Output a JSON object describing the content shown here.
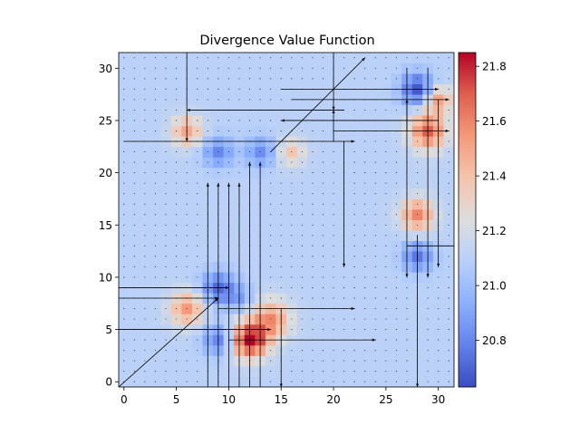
{
  "chart_data": {
    "type": "heatmap",
    "title": "Divergence Value Function",
    "grid_size": 32,
    "x_range": [
      -0.5,
      31.5
    ],
    "y_range": [
      -0.5,
      31.5
    ],
    "x_ticks": [
      0,
      5,
      10,
      15,
      20,
      25,
      30
    ],
    "y_ticks": [
      0,
      5,
      10,
      15,
      20,
      25,
      30
    ],
    "x_tick_labels": [
      "0",
      "5",
      "10",
      "15",
      "20",
      "25",
      "30"
    ],
    "y_tick_labels": [
      "0",
      "5",
      "10",
      "15",
      "20",
      "25",
      "30"
    ],
    "colormap": "coolwarm",
    "vmin": 20.63,
    "vmax": 21.85,
    "base_value": 21.1,
    "colorbar_ticks": [
      20.8,
      21.0,
      21.2,
      21.4,
      21.6,
      21.8
    ],
    "colorbar_tick_labels": [
      "20.8",
      "21.0",
      "21.2",
      "21.4",
      "21.6",
      "21.8"
    ],
    "blobs": [
      {
        "x": 12,
        "y": 4,
        "amp": 0.75,
        "sigma": 1.2
      },
      {
        "x": 14,
        "y": 6,
        "amp": 0.45,
        "sigma": 1.3
      },
      {
        "x": 9,
        "y": 4,
        "amp": -0.33,
        "sigma": 1.0
      },
      {
        "x": 6,
        "y": 7,
        "amp": 0.45,
        "sigma": 1.1
      },
      {
        "x": 9,
        "y": 9,
        "amp": -0.38,
        "sigma": 1.1
      },
      {
        "x": 11,
        "y": 8,
        "amp": -0.2,
        "sigma": 0.9
      },
      {
        "x": 6,
        "y": 24,
        "amp": 0.4,
        "sigma": 1.0
      },
      {
        "x": 9,
        "y": 22,
        "amp": -0.3,
        "sigma": 1.0
      },
      {
        "x": 13,
        "y": 22,
        "amp": -0.28,
        "sigma": 1.0
      },
      {
        "x": 16,
        "y": 22,
        "amp": 0.28,
        "sigma": 0.9
      },
      {
        "x": 28,
        "y": 28,
        "amp": -0.45,
        "sigma": 1.1
      },
      {
        "x": 30,
        "y": 27,
        "amp": 0.45,
        "sigma": 0.9
      },
      {
        "x": 29,
        "y": 24,
        "amp": 0.6,
        "sigma": 1.2
      },
      {
        "x": 28,
        "y": 16,
        "amp": 0.5,
        "sigma": 1.1
      },
      {
        "x": 28,
        "y": 12,
        "amp": -0.35,
        "sigma": 1.0
      }
    ],
    "arrows": [
      {
        "x1": 20,
        "y1": 23,
        "x2": 20,
        "y2": 26
      },
      {
        "x1": 27,
        "y1": 24,
        "x2": 27,
        "y2": 27
      },
      {
        "x1": 15,
        "y1": 28,
        "x2": 30,
        "y2": 28
      },
      {
        "x1": 16,
        "y1": 27,
        "x2": 31,
        "y2": 27
      },
      {
        "x1": 21,
        "y1": 26,
        "x2": 6,
        "y2": 26
      },
      {
        "x1": 30,
        "y1": 25,
        "x2": 15,
        "y2": 25
      },
      {
        "x1": 20,
        "y1": 24,
        "x2": 31,
        "y2": 24
      },
      {
        "x1": 0,
        "y1": 23,
        "x2": 22,
        "y2": 23
      },
      {
        "x1": 14,
        "y1": 22,
        "x2": 23,
        "y2": 31
      },
      {
        "x1": 21,
        "y1": 23,
        "x2": 21,
        "y2": 11
      },
      {
        "x1": 29,
        "y1": 30,
        "x2": 29,
        "y2": 10
      },
      {
        "x1": 30,
        "y1": 27,
        "x2": 30,
        "y2": 11
      },
      {
        "x1": 27,
        "y1": 13,
        "x2": 32,
        "y2": 13
      },
      {
        "x1": 28,
        "y1": 14,
        "x2": 28,
        "y2": -0.5
      },
      {
        "x1": 27,
        "y1": 30,
        "x2": 27,
        "y2": 10
      },
      {
        "x1": 8,
        "y1": -0.5,
        "x2": 8,
        "y2": 19
      },
      {
        "x1": 9,
        "y1": -0.5,
        "x2": 9,
        "y2": 19
      },
      {
        "x1": 10,
        "y1": -0.5,
        "x2": 10,
        "y2": 19
      },
      {
        "x1": 11,
        "y1": -0.5,
        "x2": 11,
        "y2": 19
      },
      {
        "x1": 12,
        "y1": -0.5,
        "x2": 12,
        "y2": 21
      },
      {
        "x1": 13,
        "y1": -0.5,
        "x2": 13,
        "y2": 21
      },
      {
        "x1": -0.5,
        "y1": 9,
        "x2": 10,
        "y2": 9
      },
      {
        "x1": -0.5,
        "y1": 8,
        "x2": 9,
        "y2": 8
      },
      {
        "x1": 9,
        "y1": 7,
        "x2": 22,
        "y2": 7
      },
      {
        "x1": -0.5,
        "y1": 5,
        "x2": 14,
        "y2": 5
      },
      {
        "x1": 10,
        "y1": 4,
        "x2": 24,
        "y2": 4
      },
      {
        "x1": -0.5,
        "y1": -0.5,
        "x2": 9,
        "y2": 8
      },
      {
        "x1": 6,
        "y1": 31.5,
        "x2": 6,
        "y2": 23
      },
      {
        "x1": 20,
        "y1": 31.5,
        "x2": 20,
        "y2": 26
      },
      {
        "x1": 15,
        "y1": 7,
        "x2": 15,
        "y2": -0.5
      }
    ]
  }
}
